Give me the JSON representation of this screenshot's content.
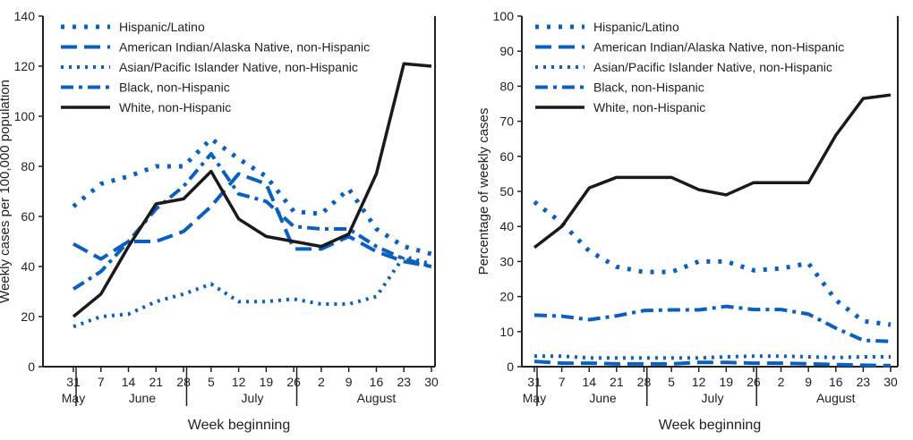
{
  "chart_data": [
    {
      "type": "line",
      "ylabel": "Weekly cases per 100,000 population",
      "xlabel": "Week beginning",
      "ylim": [
        0,
        140
      ],
      "yticks": [
        0,
        20,
        40,
        60,
        80,
        100,
        120,
        140
      ],
      "x": [
        "31",
        "7",
        "14",
        "21",
        "28",
        "5",
        "12",
        "19",
        "26",
        "2",
        "9",
        "16",
        "23",
        "30"
      ],
      "months": [
        {
          "label": "May",
          "start": 0,
          "end": 0
        },
        {
          "label": "June",
          "start": 1,
          "end": 4
        },
        {
          "label": "July",
          "start": 5,
          "end": 8
        },
        {
          "label": "August",
          "start": 9,
          "end": 13
        }
      ],
      "legend_position": "top-left",
      "series": [
        {
          "name": "Hispanic/Latino",
          "style": "dotted-bold",
          "color": "#0a5fc0",
          "values": [
            64,
            73,
            76,
            80,
            80,
            91,
            83,
            76,
            62,
            61,
            71,
            55,
            48,
            45
          ]
        },
        {
          "name": "American Indian/Alaska Native, non-Hispanic",
          "style": "dashed",
          "color": "#0a5fc0",
          "values": [
            49,
            43,
            50,
            50,
            54,
            64,
            77,
            73,
            47,
            47,
            52,
            46,
            42,
            40
          ]
        },
        {
          "name": "Asian/Pacific Islander Native, non-Hispanic",
          "style": "dotted",
          "color": "#0a5fc0",
          "values": [
            16,
            20,
            21,
            26,
            29,
            33,
            26,
            26,
            27,
            25,
            25,
            28,
            44,
            41
          ]
        },
        {
          "name": "Black, non-Hispanic",
          "style": "dash-dot",
          "color": "#0a5fc0",
          "values": [
            31,
            38,
            50,
            63,
            72,
            85,
            69,
            66,
            56,
            55,
            55,
            48,
            43,
            40
          ]
        },
        {
          "name": "White, non-Hispanic",
          "style": "solid",
          "color": "#1a1a1a",
          "values": [
            20,
            29,
            48,
            65,
            67,
            78,
            59,
            52,
            50,
            48,
            53,
            77,
            121,
            120
          ]
        }
      ]
    },
    {
      "type": "line",
      "ylabel": "Percentage of weekly cases",
      "xlabel": "Week beginning",
      "ylim": [
        0,
        100
      ],
      "yticks": [
        0,
        10,
        20,
        30,
        40,
        50,
        60,
        70,
        80,
        90,
        100
      ],
      "x": [
        "31",
        "7",
        "14",
        "21",
        "28",
        "5",
        "12",
        "19",
        "26",
        "2",
        "9",
        "16",
        "23",
        "30"
      ],
      "months": [
        {
          "label": "May",
          "start": 0,
          "end": 0
        },
        {
          "label": "June",
          "start": 1,
          "end": 4
        },
        {
          "label": "July",
          "start": 5,
          "end": 8
        },
        {
          "label": "August",
          "start": 9,
          "end": 13
        }
      ],
      "legend_position": "top-left",
      "series": [
        {
          "name": "Hispanic/Latino",
          "style": "dotted-bold",
          "color": "#0a5fc0",
          "values": [
            47,
            41,
            33,
            28.5,
            27,
            27,
            30,
            30,
            27.5,
            28,
            29.5,
            19,
            13,
            12
          ]
        },
        {
          "name": "American Indian/Alaska Native, non-Hispanic",
          "style": "dashed",
          "color": "#0a5fc0",
          "values": [
            1.5,
            1,
            1,
            0.8,
            0.8,
            0.8,
            1.2,
            1.2,
            1,
            1,
            0.8,
            0.6,
            0.4,
            0.3
          ]
        },
        {
          "name": "Asian/Pacific Islander Native, non-Hispanic",
          "style": "dotted",
          "color": "#0a5fc0",
          "values": [
            3,
            3,
            2.5,
            2.5,
            2.5,
            2.5,
            2.5,
            2.8,
            3,
            3,
            2.8,
            2.6,
            2.8,
            2.8
          ]
        },
        {
          "name": "Black, non-Hispanic",
          "style": "dash-dot",
          "color": "#0a5fc0",
          "values": [
            14.7,
            14.4,
            13.4,
            14.5,
            16,
            16.2,
            16.2,
            17.2,
            16.3,
            16.3,
            15,
            11,
            7.5,
            7.2
          ]
        },
        {
          "name": "White, non-Hispanic",
          "style": "solid",
          "color": "#1a1a1a",
          "values": [
            34,
            40,
            51,
            54,
            54,
            54,
            50.5,
            49,
            52.5,
            52.5,
            52.5,
            66,
            76.5,
            77.5
          ]
        }
      ]
    }
  ]
}
